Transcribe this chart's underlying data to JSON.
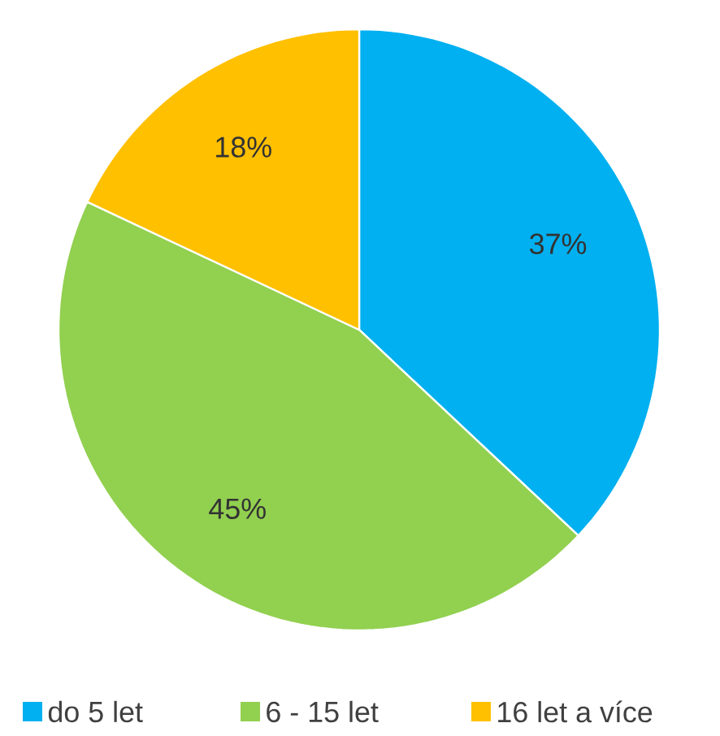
{
  "chart_data": {
    "type": "pie",
    "categories": [
      "do 5 let",
      "6 - 15 let",
      "16 let a více"
    ],
    "values": [
      37,
      45,
      18
    ],
    "colors": [
      "#00b0f0",
      "#92d050",
      "#ffc000"
    ],
    "value_labels": [
      "37%",
      "45%",
      "18%"
    ],
    "legend": "bottom"
  }
}
